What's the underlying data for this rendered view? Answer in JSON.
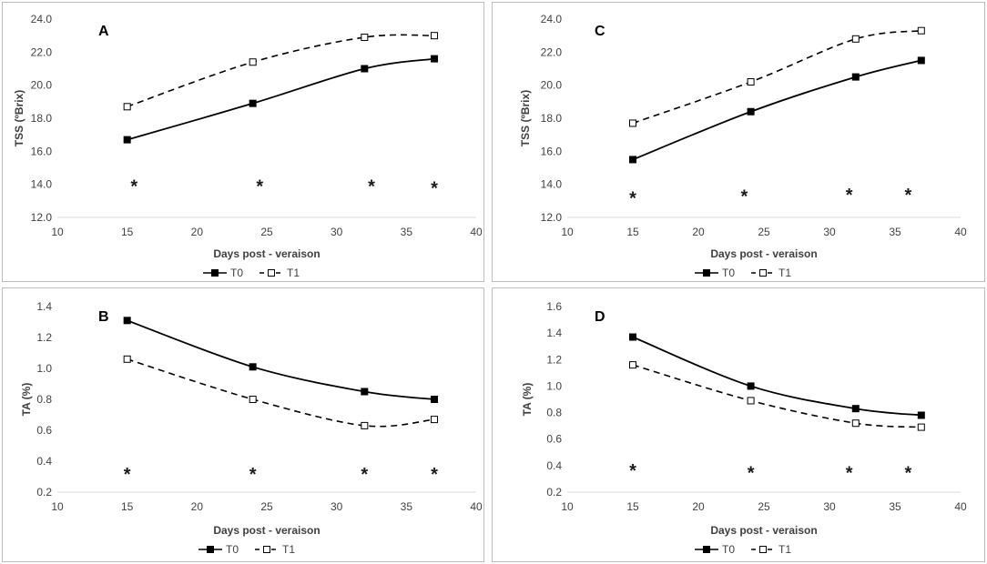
{
  "chart_data": [
    {
      "id": "A",
      "type": "line",
      "letter": "A",
      "xlabel": "Days post - veraison",
      "ylabel": "TSS (ºBrix)",
      "xlim": [
        10,
        40
      ],
      "xticks": [
        10,
        15,
        20,
        25,
        30,
        35,
        40
      ],
      "ylim": [
        12,
        24
      ],
      "yticks": [
        12,
        14,
        16,
        18,
        20,
        22,
        24
      ],
      "ydecimals": 1,
      "x": [
        15,
        24,
        32,
        37
      ],
      "series": [
        {
          "name": "T0",
          "values": [
            16.7,
            18.9,
            21.0,
            21.6
          ]
        },
        {
          "name": "T1",
          "values": [
            18.7,
            21.4,
            22.9,
            23.0
          ]
        }
      ],
      "annotations": [
        {
          "text": "*",
          "x": 15.5,
          "y": 14.0
        },
        {
          "text": "*",
          "x": 24.5,
          "y": 14.0
        },
        {
          "text": "*",
          "x": 32.5,
          "y": 14.0
        },
        {
          "text": "*",
          "x": 37.0,
          "y": 13.9
        }
      ],
      "legend": "bottom"
    },
    {
      "id": "C",
      "type": "line",
      "letter": "C",
      "xlabel": "Days post - veraison",
      "ylabel": "TSS (ºBrix)",
      "xlim": [
        10,
        40
      ],
      "xticks": [
        10,
        15,
        20,
        25,
        30,
        35,
        40
      ],
      "ylim": [
        12,
        24
      ],
      "yticks": [
        12,
        14,
        16,
        18,
        20,
        22,
        24
      ],
      "ydecimals": 1,
      "x": [
        15,
        24,
        32,
        37
      ],
      "series": [
        {
          "name": "T0",
          "values": [
            15.5,
            18.4,
            20.5,
            21.5
          ]
        },
        {
          "name": "T1",
          "values": [
            17.7,
            20.2,
            22.8,
            23.3
          ]
        }
      ],
      "annotations": [
        {
          "text": "*",
          "x": 15.0,
          "y": 13.3
        },
        {
          "text": "*",
          "x": 23.5,
          "y": 13.4
        },
        {
          "text": "*",
          "x": 31.5,
          "y": 13.5
        },
        {
          "text": "*",
          "x": 36.0,
          "y": 13.5
        }
      ],
      "legend": "bottom"
    },
    {
      "id": "B",
      "type": "line",
      "letter": "B",
      "xlabel": "Days post - veraison",
      "ylabel": "TA (%)",
      "xlim": [
        10,
        40
      ],
      "xticks": [
        10,
        15,
        20,
        25,
        30,
        35,
        40
      ],
      "ylim": [
        0.2,
        1.4
      ],
      "yticks": [
        0.2,
        0.4,
        0.6,
        0.8,
        1.0,
        1.2,
        1.4
      ],
      "ydecimals": 1,
      "x": [
        15,
        24,
        32,
        37
      ],
      "series": [
        {
          "name": "T0",
          "values": [
            1.31,
            1.01,
            0.85,
            0.8
          ]
        },
        {
          "name": "T1",
          "values": [
            1.06,
            0.8,
            0.63,
            0.67
          ]
        }
      ],
      "annotations": [
        {
          "text": "*",
          "x": 15.0,
          "y": 0.33
        },
        {
          "text": "*",
          "x": 24.0,
          "y": 0.33
        },
        {
          "text": "*",
          "x": 32.0,
          "y": 0.33
        },
        {
          "text": "*",
          "x": 37.0,
          "y": 0.33
        }
      ],
      "legend": "bottom"
    },
    {
      "id": "D",
      "type": "line",
      "letter": "D",
      "xlabel": "Days post - veraison",
      "ylabel": "TA (%)",
      "xlim": [
        10,
        40
      ],
      "xticks": [
        10,
        15,
        20,
        25,
        30,
        35,
        40
      ],
      "ylim": [
        0.2,
        1.6
      ],
      "yticks": [
        0.2,
        0.4,
        0.6,
        0.8,
        1.0,
        1.2,
        1.4,
        1.6
      ],
      "ydecimals": 1,
      "x": [
        15,
        24,
        32,
        37
      ],
      "series": [
        {
          "name": "T0",
          "values": [
            1.37,
            1.0,
            0.83,
            0.78
          ]
        },
        {
          "name": "T1",
          "values": [
            1.16,
            0.89,
            0.72,
            0.69
          ]
        }
      ],
      "annotations": [
        {
          "text": "*",
          "x": 15.0,
          "y": 0.38
        },
        {
          "text": "*",
          "x": 24.0,
          "y": 0.36
        },
        {
          "text": "*",
          "x": 31.5,
          "y": 0.36
        },
        {
          "text": "*",
          "x": 36.0,
          "y": 0.36
        }
      ],
      "legend": "bottom"
    }
  ],
  "colors": {
    "line": "#000000",
    "axis": "#d9d9d9",
    "text": "#404040",
    "panel_border": "#bdbdbd"
  }
}
